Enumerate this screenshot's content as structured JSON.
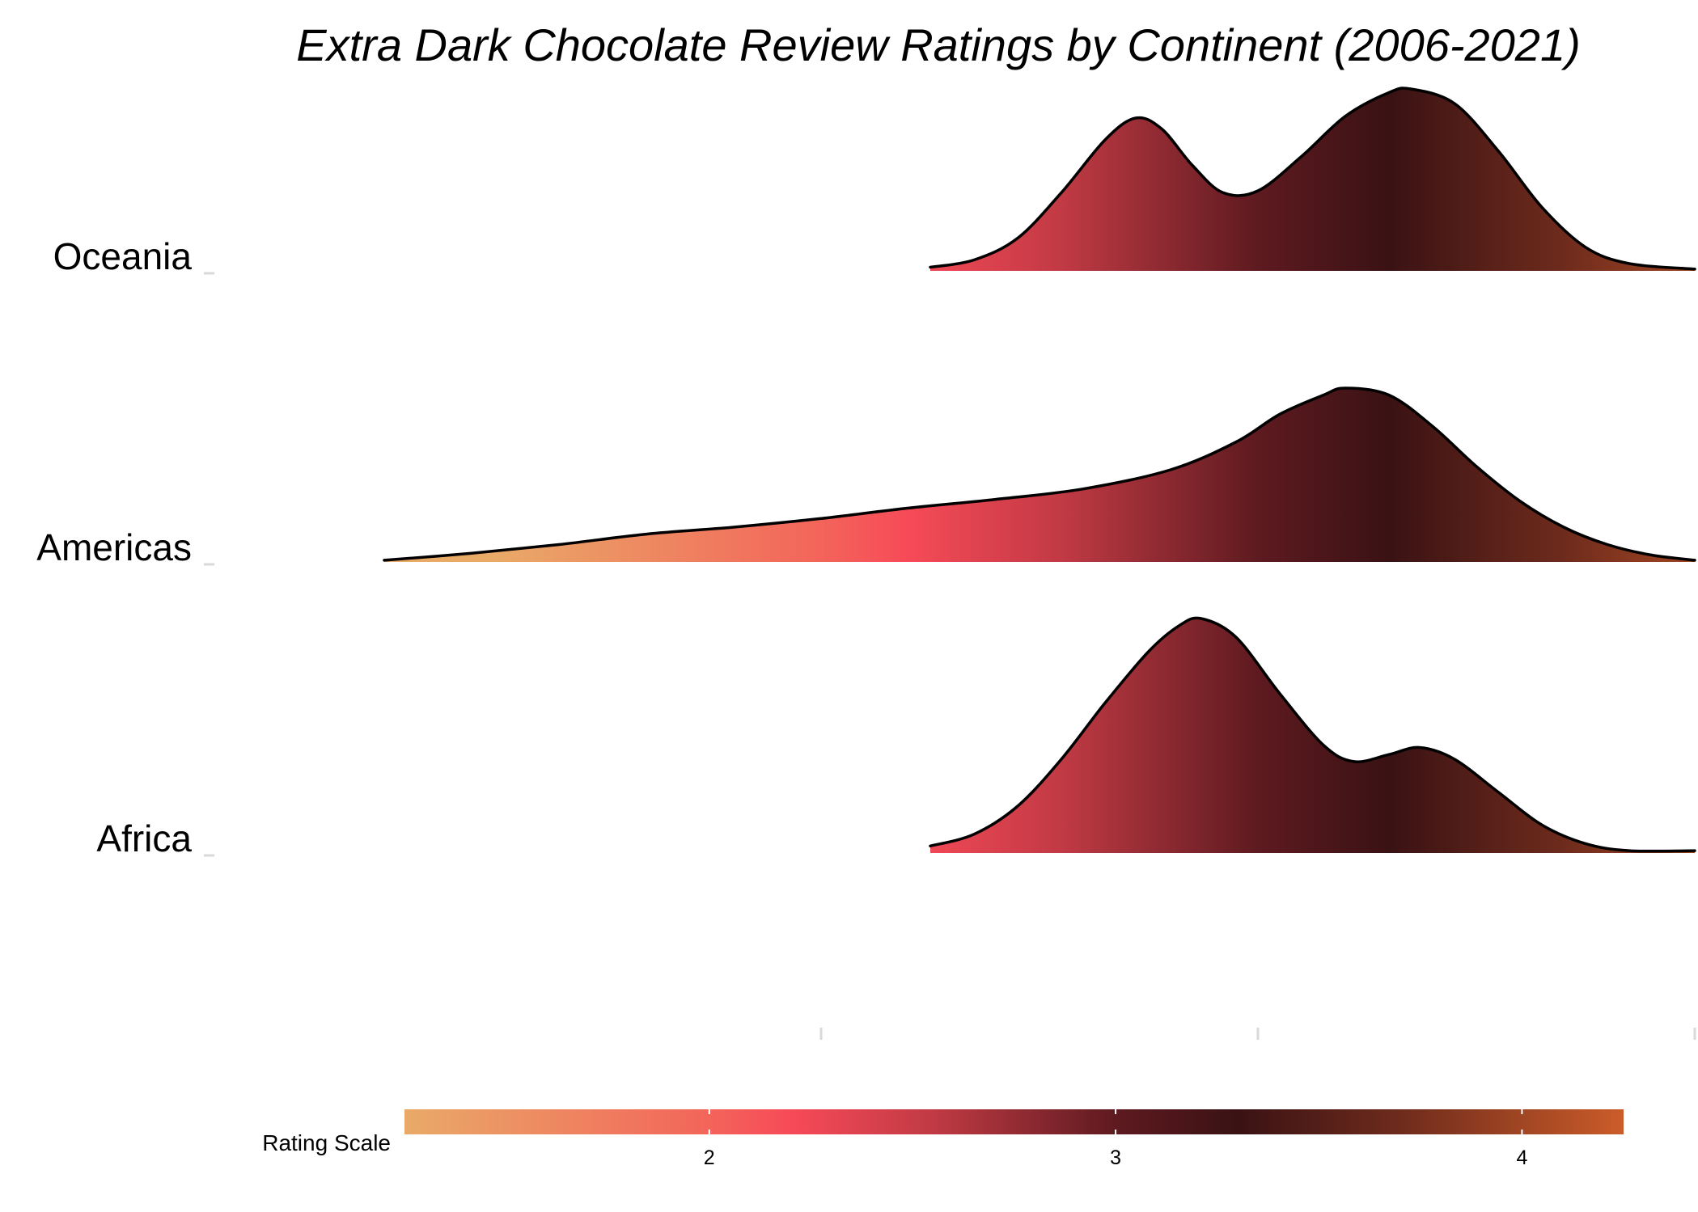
{
  "chart_data": {
    "type": "ridgeline",
    "title": "Extra Dark Chocolate Review Ratings by Continent (2006-2021)",
    "categories": [
      "Oceania",
      "Americas",
      "Africa"
    ],
    "xlim": [
      1.0,
      4.25
    ],
    "x_axis_ticks": [
      2.0,
      3.0,
      4.0
    ],
    "x_axis_tick_labels_shown": false,
    "grid": false,
    "series": [
      {
        "name": "Oceania",
        "range": [
          2.25,
          4.0
        ],
        "points": [
          [
            2.25,
            0.02
          ],
          [
            2.35,
            0.06
          ],
          [
            2.45,
            0.18
          ],
          [
            2.55,
            0.43
          ],
          [
            2.65,
            0.72
          ],
          [
            2.72,
            0.84
          ],
          [
            2.78,
            0.78
          ],
          [
            2.85,
            0.58
          ],
          [
            2.92,
            0.43
          ],
          [
            3.0,
            0.44
          ],
          [
            3.1,
            0.63
          ],
          [
            3.2,
            0.85
          ],
          [
            3.3,
            0.98
          ],
          [
            3.35,
            1.0
          ],
          [
            3.45,
            0.92
          ],
          [
            3.55,
            0.66
          ],
          [
            3.65,
            0.35
          ],
          [
            3.75,
            0.13
          ],
          [
            3.85,
            0.04
          ],
          [
            4.0,
            0.01
          ]
        ]
      },
      {
        "name": "Americas",
        "range": [
          1.0,
          4.0
        ],
        "points": [
          [
            1.0,
            0.01
          ],
          [
            1.2,
            0.05
          ],
          [
            1.4,
            0.1
          ],
          [
            1.6,
            0.16
          ],
          [
            1.8,
            0.2
          ],
          [
            2.0,
            0.25
          ],
          [
            2.2,
            0.31
          ],
          [
            2.4,
            0.36
          ],
          [
            2.6,
            0.42
          ],
          [
            2.8,
            0.53
          ],
          [
            2.95,
            0.69
          ],
          [
            3.05,
            0.85
          ],
          [
            3.15,
            0.96
          ],
          [
            3.2,
            1.0
          ],
          [
            3.3,
            0.96
          ],
          [
            3.4,
            0.78
          ],
          [
            3.5,
            0.55
          ],
          [
            3.6,
            0.35
          ],
          [
            3.7,
            0.2
          ],
          [
            3.8,
            0.1
          ],
          [
            3.9,
            0.04
          ],
          [
            4.0,
            0.01
          ]
        ]
      },
      {
        "name": "Africa",
        "range": [
          2.25,
          4.0
        ],
        "points": [
          [
            2.25,
            0.03
          ],
          [
            2.35,
            0.08
          ],
          [
            2.45,
            0.2
          ],
          [
            2.55,
            0.4
          ],
          [
            2.65,
            0.64
          ],
          [
            2.75,
            0.86
          ],
          [
            2.82,
            0.97
          ],
          [
            2.87,
            1.0
          ],
          [
            2.95,
            0.92
          ],
          [
            3.05,
            0.68
          ],
          [
            3.15,
            0.46
          ],
          [
            3.22,
            0.39
          ],
          [
            3.3,
            0.42
          ],
          [
            3.37,
            0.45
          ],
          [
            3.45,
            0.4
          ],
          [
            3.55,
            0.26
          ],
          [
            3.65,
            0.12
          ],
          [
            3.75,
            0.04
          ],
          [
            3.85,
            0.01
          ],
          [
            4.0,
            0.01
          ]
        ]
      }
    ],
    "legend": {
      "title": "Rating Scale",
      "position": "bottom",
      "range": [
        1.25,
        4.25
      ],
      "ticks": [
        2,
        3,
        4
      ],
      "tick_labels": [
        "2",
        "3",
        "4"
      ],
      "colors": [
        {
          "value": 1.25,
          "color": "#e9aa68"
        },
        {
          "value": 2.0,
          "color": "#f3645a"
        },
        {
          "value": 2.2,
          "color": "#f74a58"
        },
        {
          "value": 2.55,
          "color": "#c13a44"
        },
        {
          "value": 3.0,
          "color": "#5e1a20"
        },
        {
          "value": 3.3,
          "color": "#3a1214"
        },
        {
          "value": 3.7,
          "color": "#6e2b1c"
        },
        {
          "value": 4.25,
          "color": "#cb5c29"
        }
      ]
    }
  }
}
